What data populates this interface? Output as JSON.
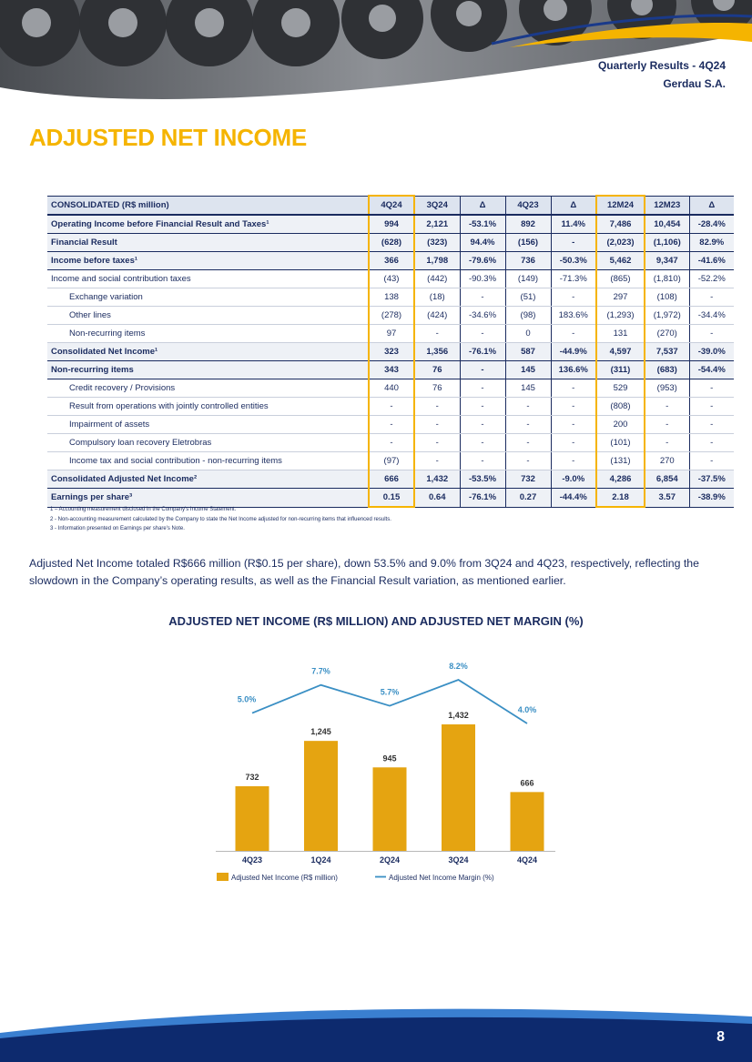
{
  "header": {
    "title": "Quarterly Results - 4Q24",
    "company": "Gerdau S.A."
  },
  "section_title": "ADJUSTED NET INCOME",
  "table": {
    "columns": [
      "CONSOLIDATED (R$ million)",
      "4Q24",
      "3Q24",
      "Δ",
      "4Q23",
      "Δ",
      "12M24",
      "12M23",
      "Δ"
    ],
    "rows": [
      [
        "Operating Income before Financial Result and Taxes¹",
        "994",
        "2,121",
        "-53.1%",
        "892",
        "11.4%",
        "7,486",
        "10,454",
        "-28.4%"
      ],
      [
        "Financial Result",
        "(628)",
        "(323)",
        "94.4%",
        "(156)",
        "-",
        "(2,023)",
        "(1,106)",
        "82.9%"
      ],
      [
        "Income before taxes¹",
        "366",
        "1,798",
        "-79.6%",
        "736",
        "-50.3%",
        "5,462",
        "9,347",
        "-41.6%"
      ],
      [
        "Income and social contribution taxes",
        "(43)",
        "(442)",
        "-90.3%",
        "(149)",
        "-71.3%",
        "(865)",
        "(1,810)",
        "-52.2%"
      ],
      [
        "Exchange variation",
        "138",
        "(18)",
        "-",
        "(51)",
        "-",
        "297",
        "(108)",
        "-"
      ],
      [
        "Other lines",
        "(278)",
        "(424)",
        "-34.6%",
        "(98)",
        "183.6%",
        "(1,293)",
        "(1,972)",
        "-34.4%"
      ],
      [
        "Non-recurring items",
        "97",
        "-",
        "-",
        "0",
        "-",
        "131",
        "(270)",
        "-"
      ],
      [
        "Consolidated Net Income¹",
        "323",
        "1,356",
        "-76.1%",
        "587",
        "-44.9%",
        "4,597",
        "7,537",
        "-39.0%"
      ],
      [
        "Non-recurring items",
        "343",
        "76",
        "-",
        "145",
        "136.6%",
        "(311)",
        "(683)",
        "-54.4%"
      ],
      [
        "Credit recovery / Provisions",
        "440",
        "76",
        "-",
        "145",
        "-",
        "529",
        "(953)",
        "-"
      ],
      [
        "Result from operations with jointly controlled entities",
        "-",
        "-",
        "-",
        "-",
        "-",
        "(808)",
        "-",
        "-"
      ],
      [
        "Impairment of assets",
        "-",
        "-",
        "-",
        "-",
        "-",
        "200",
        "-",
        "-"
      ],
      [
        "Compulsory loan recovery Eletrobras",
        "-",
        "-",
        "-",
        "-",
        "-",
        "(101)",
        "-",
        "-"
      ],
      [
        "Income tax and social contribution - non-recurring items",
        "(97)",
        "-",
        "-",
        "-",
        "-",
        "(131)",
        "270",
        "-"
      ],
      [
        "Consolidated Adjusted Net Income²",
        "666",
        "1,432",
        "-53.5%",
        "732",
        "-9.0%",
        "4,286",
        "6,854",
        "-37.5%"
      ],
      [
        "Earnings per share³",
        "0.15",
        "0.64",
        "-76.1%",
        "0.27",
        "-44.4%",
        "2.18",
        "3.57",
        "-38.9%"
      ]
    ],
    "footnotes": [
      "1 – Accounting measurement disclosed in the Company's Income Statement.",
      "2 - Non-accounting measurement calculated by the Company to state the Net Income adjusted for non-recurring items that influenced results.",
      "3 - Information presented on Earnings per share's Note."
    ]
  },
  "paragraph": "Adjusted Net Income totaled R$666 million (R$0.15 per share), down 53.5% and 9.0% from 3Q24 and 4Q23, respectively, reflecting the slowdown in the Company’s operating results, as well as the Financial Result variation, as mentioned earlier.",
  "chart_data": {
    "type": "bar_line",
    "title": "ADJUSTED NET INCOME (R$ MILLION) AND ADJUSTED NET MARGIN (%)",
    "categories": [
      "4Q23",
      "1Q24",
      "2Q24",
      "3Q24",
      "4Q24"
    ],
    "series": [
      {
        "name": "Adjusted Net Income (R$ million)",
        "type": "bar",
        "color": "#e5a411",
        "values": [
          732,
          1245,
          945,
          1432,
          666
        ],
        "value_labels": [
          "732",
          "1,245",
          "945",
          "1,432",
          "666"
        ]
      },
      {
        "name": "Adjusted Net Income Margin (%)",
        "type": "line",
        "axis": "y2",
        "color": "#3a8fc4",
        "values": [
          5.0,
          7.7,
          5.7,
          8.2,
          4.0
        ],
        "value_labels": [
          "5.0%",
          "7.7%",
          "5.7%",
          "8.2%",
          "4.0%"
        ]
      }
    ]
  },
  "page_number": "8"
}
